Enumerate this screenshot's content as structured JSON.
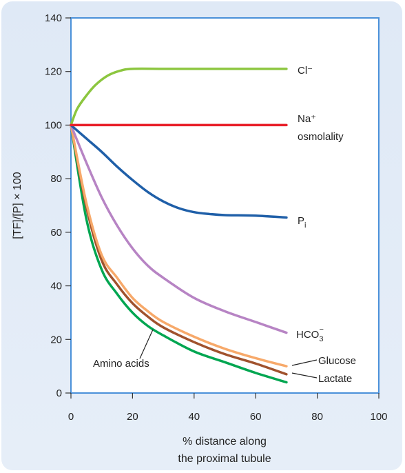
{
  "chart_data": {
    "type": "line",
    "xlabel_lines": [
      "% distance along",
      "the proximal tubule"
    ],
    "ylabel": "[TF]/[P] × 100",
    "xlim": [
      0,
      100
    ],
    "ylim": [
      0,
      140
    ],
    "xticks": [
      "0",
      "20",
      "40",
      "60",
      "80",
      "100"
    ],
    "yticks": [
      "0",
      "20",
      "40",
      "60",
      "80",
      "100",
      "120",
      "140"
    ],
    "grid": false,
    "series": [
      {
        "name": "Cl⁻",
        "color": "#8cc63f",
        "x": [
          0,
          2,
          5,
          8,
          12,
          16,
          20,
          30,
          40,
          50,
          60,
          70
        ],
        "y": [
          100,
          106,
          111,
          115,
          118.5,
          120.3,
          121,
          121,
          121,
          121,
          121,
          121
        ]
      },
      {
        "name": "Na⁺ osmolality",
        "color": "#e8202a",
        "x": [
          0,
          70
        ],
        "y": [
          100,
          100
        ]
      },
      {
        "name": "Pᵢ",
        "color": "#1f5fa8",
        "x": [
          0,
          5,
          10,
          15,
          20,
          25,
          30,
          35,
          40,
          45,
          50,
          60,
          70
        ],
        "y": [
          100,
          95,
          90,
          84.5,
          79.5,
          75,
          71.5,
          69,
          67.5,
          66.8,
          66.4,
          66.2,
          65.5
        ]
      },
      {
        "name": "HCO₃⁻",
        "color": "#b784c4",
        "x": [
          0,
          5,
          10,
          15,
          20,
          25,
          30,
          40,
          50,
          60,
          70
        ],
        "y": [
          100,
          86,
          73,
          62.5,
          54,
          47.5,
          43,
          35.5,
          30.5,
          26.5,
          22.5
        ]
      },
      {
        "name": "Glucose",
        "color": "#f7a96a",
        "x": [
          0,
          5,
          10,
          15,
          20,
          25,
          30,
          40,
          50,
          60,
          70
        ],
        "y": [
          100,
          71,
          51.5,
          43,
          35.5,
          30.5,
          26.5,
          21,
          16.5,
          13,
          10
        ]
      },
      {
        "name": "Lactate",
        "color": "#a0522d",
        "x": [
          0,
          5,
          10,
          15,
          20,
          25,
          30,
          40,
          50,
          60,
          70
        ],
        "y": [
          100,
          69.5,
          49.5,
          40.5,
          33.5,
          28.5,
          24.5,
          19,
          14.5,
          11,
          7
        ]
      },
      {
        "name": "Amino acids",
        "color": "#00a651",
        "x": [
          0,
          5,
          10,
          15,
          20,
          25,
          30,
          40,
          50,
          60,
          70
        ],
        "y": [
          100,
          65,
          46,
          37,
          30,
          25,
          21.5,
          15.5,
          11.5,
          7.5,
          4
        ]
      }
    ],
    "labels": {
      "cl": "Cl⁻",
      "na_line1": "Na⁺",
      "na_line2": "osmolality",
      "pi_main": "P",
      "pi_sub": "i",
      "hco3_main": "HCO",
      "hco3_sub": "3",
      "hco3_sup": "−",
      "glucose": "Glucose",
      "lactate": "Lactate",
      "amino": "Amino acids"
    }
  }
}
